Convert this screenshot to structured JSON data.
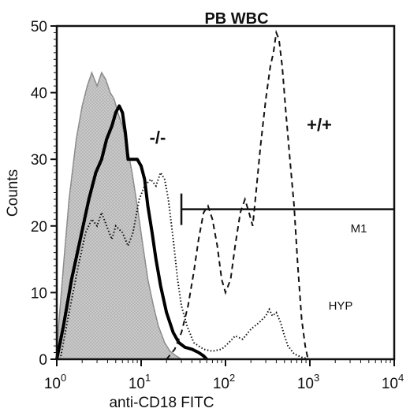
{
  "chart_data": {
    "type": "area",
    "title": "PB  WBC",
    "xlabel": "anti-CD18 FITC",
    "ylabel": "Counts",
    "x_scale": "log",
    "xlim": [
      1,
      10000
    ],
    "ylim": [
      0,
      50
    ],
    "x_ticks": [
      {
        "base": "10",
        "exp": "0",
        "value": 1
      },
      {
        "base": "10",
        "exp": "1",
        "value": 10
      },
      {
        "base": "10",
        "exp": "2",
        "value": 100
      },
      {
        "base": "10",
        "exp": "3",
        "value": 1000
      },
      {
        "base": "10",
        "exp": "4",
        "value": 10000
      }
    ],
    "y_ticks": [
      "0",
      "10",
      "20",
      "30",
      "40",
      "50"
    ],
    "annotations": {
      "knockout": "-/-",
      "wildtype": "+/+",
      "gate": "M1",
      "hyp": "HYP"
    },
    "gate_range": [
      30,
      10000
    ],
    "gate_level": 22.5,
    "series": [
      {
        "style": "shaded-gray",
        "points": [
          [
            1.0,
            0
          ],
          [
            1.05,
            5
          ],
          [
            1.2,
            14
          ],
          [
            1.4,
            24
          ],
          [
            1.7,
            33
          ],
          [
            2.0,
            38
          ],
          [
            2.3,
            41
          ],
          [
            2.6,
            43
          ],
          [
            3.0,
            41
          ],
          [
            3.4,
            43
          ],
          [
            3.8,
            42
          ],
          [
            4.3,
            40
          ],
          [
            4.8,
            39
          ],
          [
            5.3,
            37
          ],
          [
            6.0,
            35
          ],
          [
            6.8,
            32
          ],
          [
            7.8,
            28
          ],
          [
            9.0,
            23
          ],
          [
            10.5,
            17
          ],
          [
            12.0,
            12
          ],
          [
            14.0,
            8
          ],
          [
            16.0,
            5
          ],
          [
            19.0,
            2.5
          ],
          [
            22.0,
            1.2
          ],
          [
            26.0,
            0.5
          ],
          [
            30.0,
            0
          ]
        ]
      },
      {
        "style": "solid-thick",
        "points": [
          [
            1.0,
            0
          ],
          [
            1.2,
            5
          ],
          [
            1.5,
            12
          ],
          [
            1.9,
            18
          ],
          [
            2.4,
            24
          ],
          [
            2.9,
            28
          ],
          [
            3.4,
            30
          ],
          [
            3.9,
            33
          ],
          [
            4.5,
            35
          ],
          [
            5.0,
            37
          ],
          [
            5.5,
            38
          ],
          [
            6.0,
            37
          ],
          [
            6.5,
            34
          ],
          [
            7.0,
            30
          ],
          [
            8.0,
            30
          ],
          [
            9.0,
            30
          ],
          [
            10.0,
            29
          ],
          [
            11.0,
            27
          ],
          [
            12.0,
            23
          ],
          [
            13.5,
            19
          ],
          [
            15.0,
            15
          ],
          [
            17.0,
            11
          ],
          [
            20.0,
            7
          ],
          [
            24.0,
            4
          ],
          [
            28.0,
            2.5
          ],
          [
            33.0,
            1.8
          ],
          [
            40.0,
            1.5
          ],
          [
            48.0,
            1.0
          ],
          [
            55.0,
            0.5
          ],
          [
            60.0,
            0
          ]
        ]
      },
      {
        "style": "dotted",
        "points": [
          [
            1.1,
            0
          ],
          [
            1.4,
            7
          ],
          [
            1.8,
            14
          ],
          [
            2.2,
            19
          ],
          [
            2.6,
            21
          ],
          [
            3.0,
            20
          ],
          [
            3.4,
            22
          ],
          [
            3.9,
            20
          ],
          [
            4.5,
            18
          ],
          [
            5.0,
            20
          ],
          [
            6.0,
            19
          ],
          [
            7.0,
            17
          ],
          [
            8.0,
            19
          ],
          [
            9.5,
            24
          ],
          [
            11.0,
            26
          ],
          [
            13.0,
            27
          ],
          [
            15.0,
            26
          ],
          [
            17.0,
            28
          ],
          [
            19.0,
            27
          ],
          [
            21.0,
            24
          ],
          [
            24.0,
            18
          ],
          [
            27.0,
            12
          ],
          [
            30.0,
            8
          ],
          [
            35.0,
            5
          ],
          [
            42.0,
            2.5
          ],
          [
            55.0,
            1.5
          ],
          [
            70.0,
            1.2
          ],
          [
            90.0,
            1.5
          ],
          [
            110.0,
            2.5
          ],
          [
            130.0,
            3.5
          ],
          [
            160.0,
            3.0
          ],
          [
            200.0,
            4.5
          ],
          [
            250.0,
            5.5
          ],
          [
            300.0,
            6.5
          ],
          [
            330.0,
            7.5
          ],
          [
            360.0,
            6.5
          ],
          [
            400.0,
            7.0
          ],
          [
            450.0,
            5.5
          ],
          [
            500.0,
            3.5
          ],
          [
            550.0,
            2.0
          ],
          [
            650.0,
            0.8
          ],
          [
            800.0,
            0.3
          ],
          [
            1000.0,
            0
          ]
        ]
      },
      {
        "style": "dashed",
        "points": [
          [
            20.0,
            0
          ],
          [
            25.0,
            1.5
          ],
          [
            30.0,
            4
          ],
          [
            36.0,
            8
          ],
          [
            42.0,
            13
          ],
          [
            48.0,
            18
          ],
          [
            55.0,
            22
          ],
          [
            62.0,
            23
          ],
          [
            70.0,
            21
          ],
          [
            80.0,
            17
          ],
          [
            90.0,
            12
          ],
          [
            100.0,
            10
          ],
          [
            115.0,
            12
          ],
          [
            130.0,
            17
          ],
          [
            150.0,
            22
          ],
          [
            170.0,
            24
          ],
          [
            190.0,
            22
          ],
          [
            210.0,
            20
          ],
          [
            230.0,
            25
          ],
          [
            260.0,
            32
          ],
          [
            300.0,
            39
          ],
          [
            340.0,
            44
          ],
          [
            370.0,
            46
          ],
          [
            400.0,
            49
          ],
          [
            430.0,
            48
          ],
          [
            470.0,
            44
          ],
          [
            520.0,
            37
          ],
          [
            580.0,
            30
          ],
          [
            650.0,
            23
          ],
          [
            720.0,
            14
          ],
          [
            800.0,
            6
          ],
          [
            880.0,
            2
          ],
          [
            950.0,
            0
          ]
        ]
      }
    ]
  }
}
